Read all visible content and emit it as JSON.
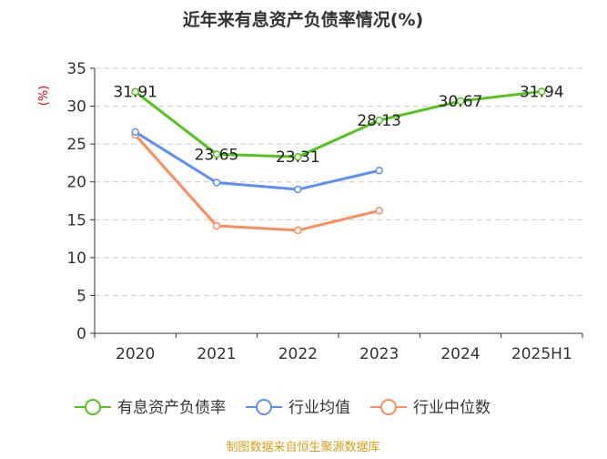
{
  "chart_data": {
    "type": "line",
    "title": "近年来有息资产负债率情况(%)",
    "ylabel": "(%)",
    "categories": [
      "2020",
      "2021",
      "2022",
      "2023",
      "2024",
      "2025H1"
    ],
    "ylim": [
      0,
      35
    ],
    "yticks": [
      0,
      5,
      10,
      15,
      20,
      25,
      30,
      35
    ],
    "grid": true,
    "legend_position": "bottom",
    "series": [
      {
        "name": "有息资产负债率",
        "color": "#52c41a",
        "values": [
          31.91,
          23.65,
          23.31,
          28.13,
          30.67,
          31.94
        ],
        "labels": [
          "31.91",
          "23.65",
          "23.31",
          "28.13",
          "30.67",
          "31.94"
        ]
      },
      {
        "name": "行业均值",
        "color": "#5b8ff9",
        "values": [
          26.6,
          19.9,
          19.0,
          21.5,
          null,
          null
        ]
      },
      {
        "name": "行业中位数",
        "color": "#ff8c5a",
        "values": [
          26.2,
          14.2,
          13.6,
          16.2,
          null,
          null
        ]
      }
    ]
  },
  "source": "制图数据来自恒生聚源数据库"
}
